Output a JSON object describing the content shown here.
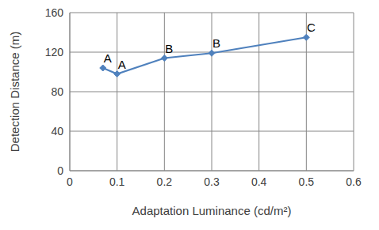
{
  "chart_data": {
    "type": "line",
    "x_label": "Adaptation Luminance (cd/m²)",
    "y_label": "Detection Distance (m)",
    "x": [
      0.07,
      0.1,
      0.2,
      0.3,
      0.5
    ],
    "series": [
      {
        "color": "#4f81bd",
        "marker": "diamond",
        "values": [
          104,
          98,
          114,
          119,
          135
        ],
        "point_labels": [
          "A",
          "A",
          "B",
          "B",
          "C"
        ]
      }
    ],
    "xlim": [
      0,
      0.6
    ],
    "xticks": [
      0,
      0.1,
      0.2,
      0.3,
      0.4,
      0.5,
      0.6
    ],
    "ylim": [
      0,
      160
    ],
    "yticks": [
      0,
      40,
      80,
      120,
      160
    ],
    "grid": true
  }
}
